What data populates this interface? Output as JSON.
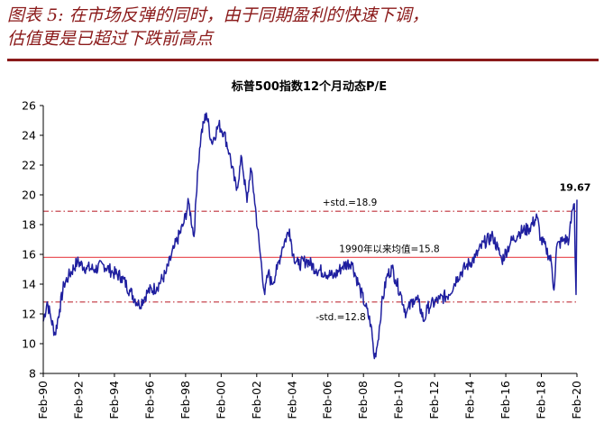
{
  "caption": {
    "line1": "图表 5: 在市场反弹的同时，由于同期盈利的快速下调，",
    "line2": "估值更是已超过下跌前高点"
  },
  "chart_data": {
    "type": "line",
    "title": "标普500指数12个月动态P/E",
    "xlabel": "",
    "ylabel": "",
    "ylim": [
      8,
      26
    ],
    "yticks": [
      8,
      10,
      12,
      14,
      16,
      18,
      20,
      22,
      24,
      26
    ],
    "x_range": [
      "Feb-90",
      "Mar-20"
    ],
    "xticks": [
      "Feb-90",
      "Feb-92",
      "Feb-94",
      "Feb-96",
      "Feb-98",
      "Feb-00",
      "Feb-02",
      "Feb-04",
      "Feb-06",
      "Feb-08",
      "Feb-10",
      "Feb-12",
      "Feb-14",
      "Feb-16",
      "Feb-18",
      "Feb-20"
    ],
    "grid": false,
    "colors": {
      "line": "#1f1f9f",
      "mean": "#e8424a",
      "band": "#c0303a"
    },
    "series": [
      {
        "x": [
          1990.08,
          1990.3,
          1990.5,
          1990.75,
          1991.0,
          1991.25,
          1991.5,
          1992.0,
          1992.5,
          1993.0,
          1993.5,
          1994.0,
          1994.5,
          1995.0,
          1995.5,
          1996.0,
          1996.5,
          1997.0,
          1997.5,
          1998.0,
          1998.3,
          1998.6,
          1998.8,
          1999.0,
          1999.3,
          1999.6,
          2000.0,
          2000.3,
          2000.6,
          2001.0,
          2001.3,
          2001.6,
          2001.8,
          2002.0,
          2002.3,
          2002.6,
          2002.8,
          2003.0,
          2003.3,
          2003.6,
          2004.0,
          2004.2,
          2004.5,
          2005.0,
          2005.5,
          2006.0,
          2006.5,
          2007.0,
          2007.5,
          2008.0,
          2008.3,
          2008.6,
          2008.8,
          2009.0,
          2009.2,
          2009.5,
          2009.8,
          2010.0,
          2010.3,
          2010.6,
          2011.0,
          2011.3,
          2011.6,
          2011.8,
          2012.0,
          2012.5,
          2013.0,
          2013.5,
          2014.0,
          2014.5,
          2015.0,
          2015.5,
          2015.8,
          2016.0,
          2016.5,
          2017.0,
          2017.5,
          2018.0,
          2018.2,
          2018.5,
          2018.8,
          2018.95,
          2019.1,
          2019.5,
          2019.8,
          2020.0,
          2020.1,
          2020.15,
          2020.2,
          2020.25
        ],
        "values": [
          11.5,
          12.8,
          11.8,
          10.6,
          12.3,
          14.0,
          14.5,
          15.5,
          15.1,
          15.0,
          15.3,
          14.8,
          14.5,
          13.5,
          12.6,
          13.5,
          13.8,
          14.7,
          16.5,
          18.0,
          19.5,
          17.2,
          21.5,
          24.0,
          25.5,
          23.5,
          24.7,
          24.2,
          22.8,
          20.3,
          22.5,
          19.5,
          21.8,
          20.0,
          16.5,
          13.3,
          14.8,
          14.0,
          15.0,
          16.5,
          17.7,
          16.0,
          15.3,
          15.6,
          15.0,
          14.8,
          14.5,
          15.2,
          15.5,
          13.6,
          12.5,
          11.3,
          9.0,
          10.2,
          12.5,
          14.5,
          15.1,
          14.3,
          13.3,
          12.0,
          13.0,
          12.8,
          11.5,
          12.4,
          12.6,
          13.0,
          13.3,
          14.5,
          15.2,
          15.8,
          16.8,
          17.2,
          16.3,
          15.6,
          16.8,
          17.5,
          17.7,
          18.5,
          17.0,
          16.4,
          15.5,
          13.6,
          16.5,
          17.0,
          17.0,
          19.0,
          19.4,
          15.8,
          13.3,
          19.67
        ]
      }
    ],
    "reference_lines": [
      {
        "label": "+std.=18.9",
        "value": 18.9,
        "style": "dashed"
      },
      {
        "label": "1990年以来均值=15.8",
        "value": 15.8,
        "style": "solid"
      },
      {
        "label": "-std.=12.8",
        "value": 12.8,
        "style": "dashed"
      }
    ],
    "annotations": [
      {
        "text": "19.67",
        "x": 2020.25,
        "y": 19.67
      }
    ]
  }
}
